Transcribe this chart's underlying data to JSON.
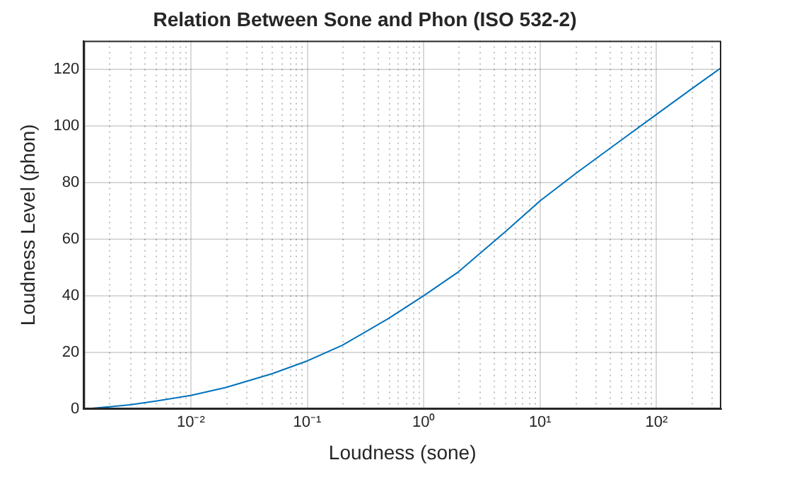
{
  "chart_data": {
    "type": "line",
    "title": "Relation Between Sone and Phon (ISO 532-2)",
    "xlabel": "Loudness (sone)",
    "ylabel": "Loudness Level (phon)",
    "log": "x",
    "grid": true,
    "marker": "none",
    "line_style": "solid",
    "xlim": [
      0.0012,
      360
    ],
    "ylim": [
      0,
      130
    ],
    "xticks": [
      {
        "value": 0.01,
        "label": "10⁻²"
      },
      {
        "value": 0.1,
        "label": "10⁻¹"
      },
      {
        "value": 1,
        "label": "10⁰"
      },
      {
        "value": 10,
        "label": "10¹"
      },
      {
        "value": 100,
        "label": "10²"
      }
    ],
    "yticks": [
      0,
      20,
      40,
      60,
      80,
      100,
      120
    ],
    "series": [
      {
        "color": "#0072bd",
        "x": [
          0.0012,
          0.002,
          0.003,
          0.005,
          0.01,
          0.02,
          0.05,
          0.1,
          0.2,
          0.5,
          1,
          2,
          3.16,
          5,
          10,
          20,
          31.6,
          50,
          100,
          200,
          360
        ],
        "values": [
          0,
          0.8,
          1.5,
          2.8,
          4.8,
          7.6,
          12.5,
          17,
          22.5,
          32,
          40,
          48.5,
          55.5,
          62.5,
          73.5,
          83,
          89,
          95,
          104,
          113,
          120.5
        ]
      }
    ]
  }
}
